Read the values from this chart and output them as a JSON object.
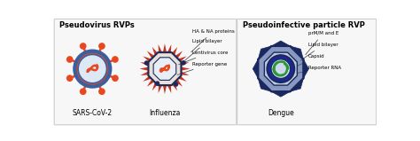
{
  "title_left": "Pseudovirus RVPs",
  "title_right": "Pseudoinfective particle RVP",
  "label_sars": "SARS-CoV-2",
  "label_influenza": "Influenza",
  "label_dengue": "Dengue",
  "annotations_influenza": [
    "HA & NA proteins",
    "Lipid bilayer",
    "Lentivirus core",
    "Reporter gene"
  ],
  "annotations_dengue": [
    "prM/M and E",
    "Lipid bilayer",
    "Capsid",
    "Reporter RNA"
  ],
  "bg_color": "#ffffff",
  "panel_bg": "#f7f7f7",
  "panel_border": "#cccccc",
  "orange": "#e84820",
  "dark_blue": "#1a2a5a",
  "mid_blue": "#3a5fa0",
  "light_blue_fill": "#d8e0f0",
  "red_spike": "#c83020",
  "white": "#ffffff",
  "green": "#2a9a30",
  "navy": "#1a2050",
  "dengue_outer": "#7080a8",
  "dengue_mid": "#b0bcd8",
  "dengue_dark": "#1a2860",
  "dengue_capsid": "#1a2890"
}
